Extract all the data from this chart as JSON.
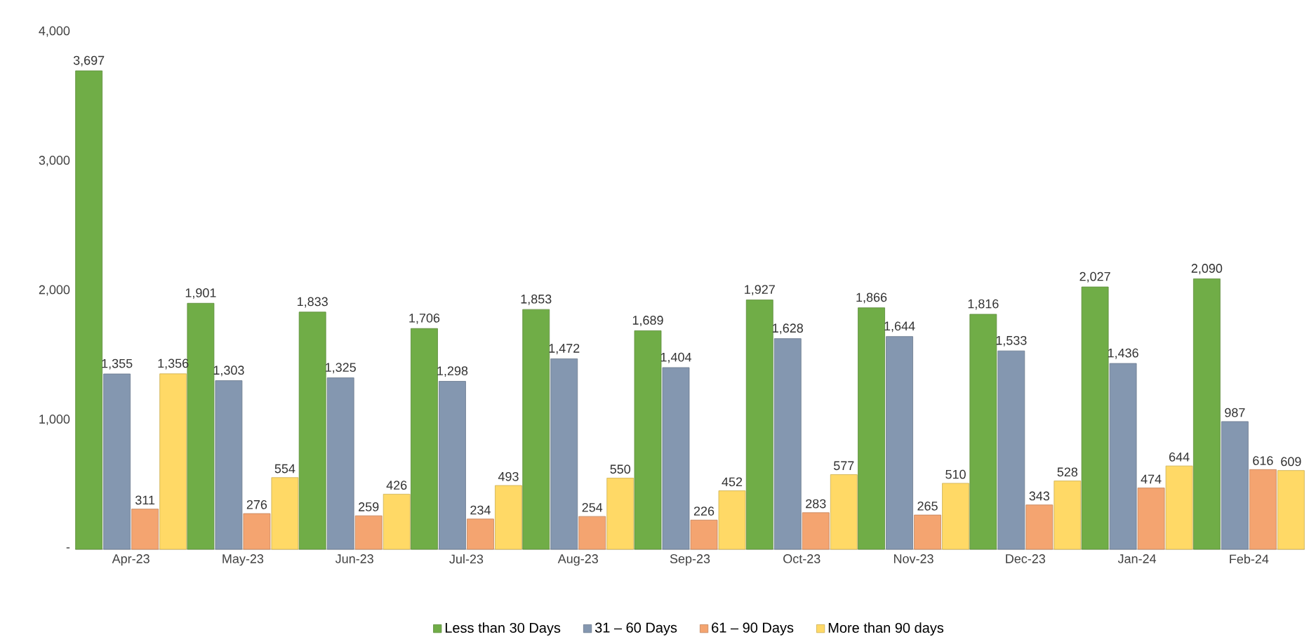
{
  "chart_data": {
    "type": "bar",
    "categories": [
      "Apr-23",
      "May-23",
      "Jun-23",
      "Jul-23",
      "Aug-23",
      "Sep-23",
      "Oct-23",
      "Nov-23",
      "Dec-23",
      "Jan-24",
      "Feb-24"
    ],
    "series": [
      {
        "name": "Less than 30 Days",
        "color": "#70ad47",
        "values": [
          3697,
          1901,
          1833,
          1706,
          1853,
          1689,
          1927,
          1866,
          1816,
          2027,
          2090
        ],
        "value_labels": [
          "3,697",
          "1,901",
          "1,833",
          "1,706",
          "1,853",
          "1,689",
          "1,927",
          "1,866",
          "1,816",
          "2,027",
          "2,090"
        ]
      },
      {
        "name": "31 – 60 Days",
        "color": "#8497b0",
        "values": [
          1355,
          1303,
          1325,
          1298,
          1472,
          1404,
          1628,
          1644,
          1533,
          1436,
          987
        ],
        "value_labels": [
          "1,355",
          "1,303",
          "1,325",
          "1,298",
          "1,472",
          "1,404",
          "1,628",
          "1,644",
          "1,533",
          "1,436",
          "987"
        ]
      },
      {
        "name": "61 – 90 Days",
        "color": "#f4a470",
        "values": [
          311,
          276,
          259,
          234,
          254,
          226,
          283,
          265,
          343,
          474,
          616
        ],
        "value_labels": [
          "311",
          "276",
          "259",
          "234",
          "254",
          "226",
          "283",
          "265",
          "343",
          "474",
          "616"
        ]
      },
      {
        "name": "More than 90 days",
        "color": "#ffd966",
        "values": [
          1356,
          554,
          426,
          493,
          550,
          452,
          577,
          510,
          528,
          644,
          609
        ],
        "value_labels": [
          "1,356",
          "554",
          "426",
          "493",
          "550",
          "452",
          "577",
          "510",
          "528",
          "644",
          "609"
        ]
      }
    ],
    "ylim": [
      0,
      4000
    ],
    "yticks": [
      {
        "value": 0,
        "label": "-"
      },
      {
        "value": 1000,
        "label": "1,000"
      },
      {
        "value": 2000,
        "label": "2,000"
      },
      {
        "value": 3000,
        "label": "3,000"
      },
      {
        "value": 4000,
        "label": "4,000"
      }
    ],
    "legend": "bottom",
    "grid": false
  }
}
